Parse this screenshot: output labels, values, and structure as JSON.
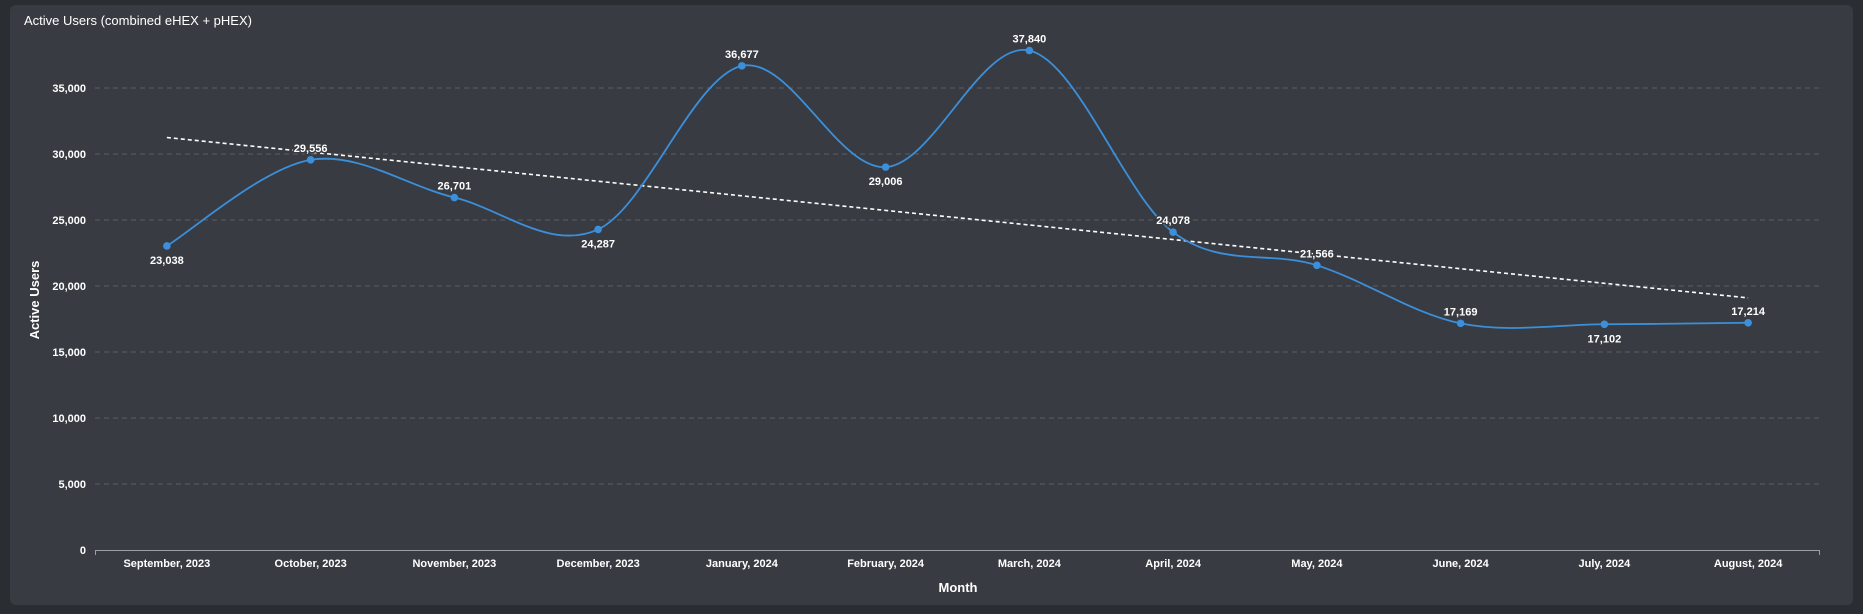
{
  "chart_title": "Active Users (combined eHEX + pHEX)",
  "colors": {
    "series": "#3b8fdb",
    "trend": "#ffffff",
    "grid": "#5a5e64",
    "background": "#383c42"
  },
  "chart_data": {
    "type": "line",
    "title": "Active Users (combined eHEX + pHEX)",
    "xlabel": "Month",
    "ylabel": "Active Users",
    "ylim": [
      0,
      37840
    ],
    "yticks": [
      0,
      5000,
      10000,
      15000,
      20000,
      25000,
      30000,
      35000
    ],
    "ytick_labels": [
      "0",
      "5,000",
      "10,000",
      "15,000",
      "20,000",
      "25,000",
      "30,000",
      "35,000"
    ],
    "grid": true,
    "categories": [
      "September, 2023",
      "October, 2023",
      "November, 2023",
      "December, 2023",
      "January, 2024",
      "February, 2024",
      "March, 2024",
      "April, 2024",
      "May, 2024",
      "June, 2024",
      "July, 2024",
      "August, 2024"
    ],
    "series": [
      {
        "values": [
          23038,
          29556,
          26701,
          24287,
          36677,
          29006,
          37840,
          24078,
          21566,
          17169,
          17102,
          17214
        ],
        "labels": [
          "23,038",
          "29,556",
          "26,701",
          "24,287",
          "36,677",
          "29,006",
          "37,840",
          "24,078",
          "21,566",
          "17,169",
          "17,102",
          "17,214"
        ],
        "label_positions": [
          "below",
          "above",
          "above",
          "below",
          "above",
          "below",
          "above",
          "above",
          "above",
          "above",
          "below",
          "above"
        ]
      }
    ],
    "trendline": {
      "style": "dashed",
      "start": 31250,
      "end": 19100
    }
  }
}
